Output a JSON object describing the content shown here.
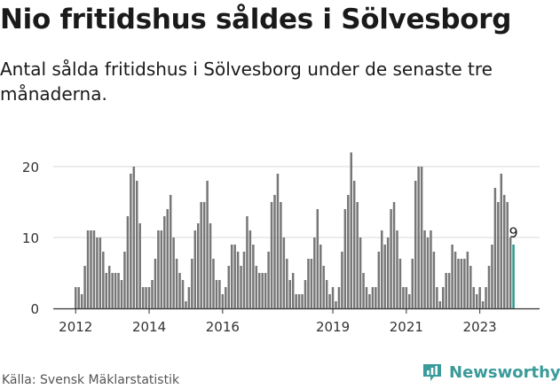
{
  "header": {
    "title": "Nio fritidshus såldes i Sölvesborg",
    "subtitle": "Antal sålda fritidshus i Sölvesborg under de senaste tre månaderna."
  },
  "footer": {
    "source": "Källa: Svensk Mäklarstatistik",
    "brand": "Newsworthy"
  },
  "colors": {
    "bar": "#777777",
    "highlight": "#2a9d8f",
    "grid": "#d9d9d9",
    "brand": "#3b9a9a"
  },
  "chart_data": {
    "type": "bar",
    "title": "",
    "xlabel": "",
    "ylabel": "",
    "ylim": [
      0,
      23
    ],
    "yticks": [
      0,
      10,
      20
    ],
    "grid": true,
    "legend": "none",
    "xtick_labels": [
      "2012",
      "2014",
      "2016",
      "2019",
      "2021",
      "2023"
    ],
    "highlight_label": "9",
    "categories": [
      "2012-01",
      "2012-02",
      "2012-03",
      "2012-04",
      "2012-05",
      "2012-06",
      "2012-07",
      "2012-08",
      "2012-09",
      "2012-10",
      "2012-11",
      "2012-12",
      "2013-01",
      "2013-02",
      "2013-03",
      "2013-04",
      "2013-05",
      "2013-06",
      "2013-07",
      "2013-08",
      "2013-09",
      "2013-10",
      "2013-11",
      "2013-12",
      "2014-01",
      "2014-02",
      "2014-03",
      "2014-04",
      "2014-05",
      "2014-06",
      "2014-07",
      "2014-08",
      "2014-09",
      "2014-10",
      "2014-11",
      "2014-12",
      "2015-01",
      "2015-02",
      "2015-03",
      "2015-04",
      "2015-05",
      "2015-06",
      "2015-07",
      "2015-08",
      "2015-09",
      "2015-10",
      "2015-11",
      "2015-12",
      "2016-01",
      "2016-02",
      "2016-03",
      "2016-04",
      "2016-05",
      "2016-06",
      "2016-07",
      "2016-08",
      "2016-09",
      "2016-10",
      "2016-11",
      "2016-12",
      "2017-01",
      "2017-02",
      "2017-03",
      "2017-04",
      "2017-05",
      "2017-06",
      "2017-07",
      "2017-08",
      "2017-09",
      "2017-10",
      "2017-11",
      "2017-12",
      "2018-01",
      "2018-02",
      "2018-03",
      "2018-04",
      "2018-05",
      "2018-06",
      "2018-07",
      "2018-08",
      "2018-09",
      "2018-10",
      "2018-11",
      "2018-12",
      "2019-01",
      "2019-02",
      "2019-03",
      "2019-04",
      "2019-05",
      "2019-06",
      "2019-07",
      "2019-08",
      "2019-09",
      "2019-10",
      "2019-11",
      "2019-12",
      "2020-01",
      "2020-02",
      "2020-03",
      "2020-04",
      "2020-05",
      "2020-06",
      "2020-07",
      "2020-08",
      "2020-09",
      "2020-10",
      "2020-11",
      "2020-12",
      "2021-01",
      "2021-02",
      "2021-03",
      "2021-04",
      "2021-05",
      "2021-06",
      "2021-07",
      "2021-08",
      "2021-09",
      "2021-10",
      "2021-11",
      "2021-12",
      "2022-01",
      "2022-02",
      "2022-03",
      "2022-04",
      "2022-05",
      "2022-06",
      "2022-07",
      "2022-08",
      "2022-09",
      "2022-10",
      "2022-11",
      "2022-12",
      "2023-01",
      "2023-02",
      "2023-03",
      "2023-04",
      "2023-05",
      "2023-06",
      "2023-07",
      "2023-08",
      "2023-09",
      "2023-10",
      "2023-11",
      "2023-12"
    ],
    "values": [
      3,
      3,
      2,
      6,
      11,
      11,
      11,
      10,
      10,
      8,
      5,
      6,
      5,
      5,
      5,
      4,
      8,
      13,
      19,
      20,
      18,
      12,
      3,
      3,
      3,
      4,
      7,
      11,
      11,
      13,
      14,
      16,
      10,
      7,
      5,
      4,
      1,
      3,
      7,
      11,
      12,
      15,
      15,
      18,
      12,
      7,
      4,
      4,
      2,
      3,
      6,
      9,
      9,
      8,
      6,
      8,
      13,
      11,
      9,
      6,
      5,
      5,
      5,
      8,
      15,
      16,
      19,
      15,
      10,
      7,
      4,
      5,
      2,
      2,
      2,
      4,
      7,
      7,
      10,
      14,
      9,
      6,
      4,
      2,
      3,
      1,
      3,
      8,
      14,
      16,
      22,
      18,
      15,
      10,
      5,
      3,
      2,
      3,
      3,
      8,
      11,
      9,
      10,
      14,
      15,
      11,
      7,
      3,
      3,
      2,
      7,
      18,
      20,
      20,
      11,
      10,
      11,
      8,
      3,
      1,
      3,
      5,
      5,
      9,
      8,
      7,
      7,
      7,
      8,
      6,
      3,
      2,
      3,
      1,
      3,
      6,
      9,
      17,
      15,
      19,
      16,
      15,
      10,
      9
    ]
  }
}
